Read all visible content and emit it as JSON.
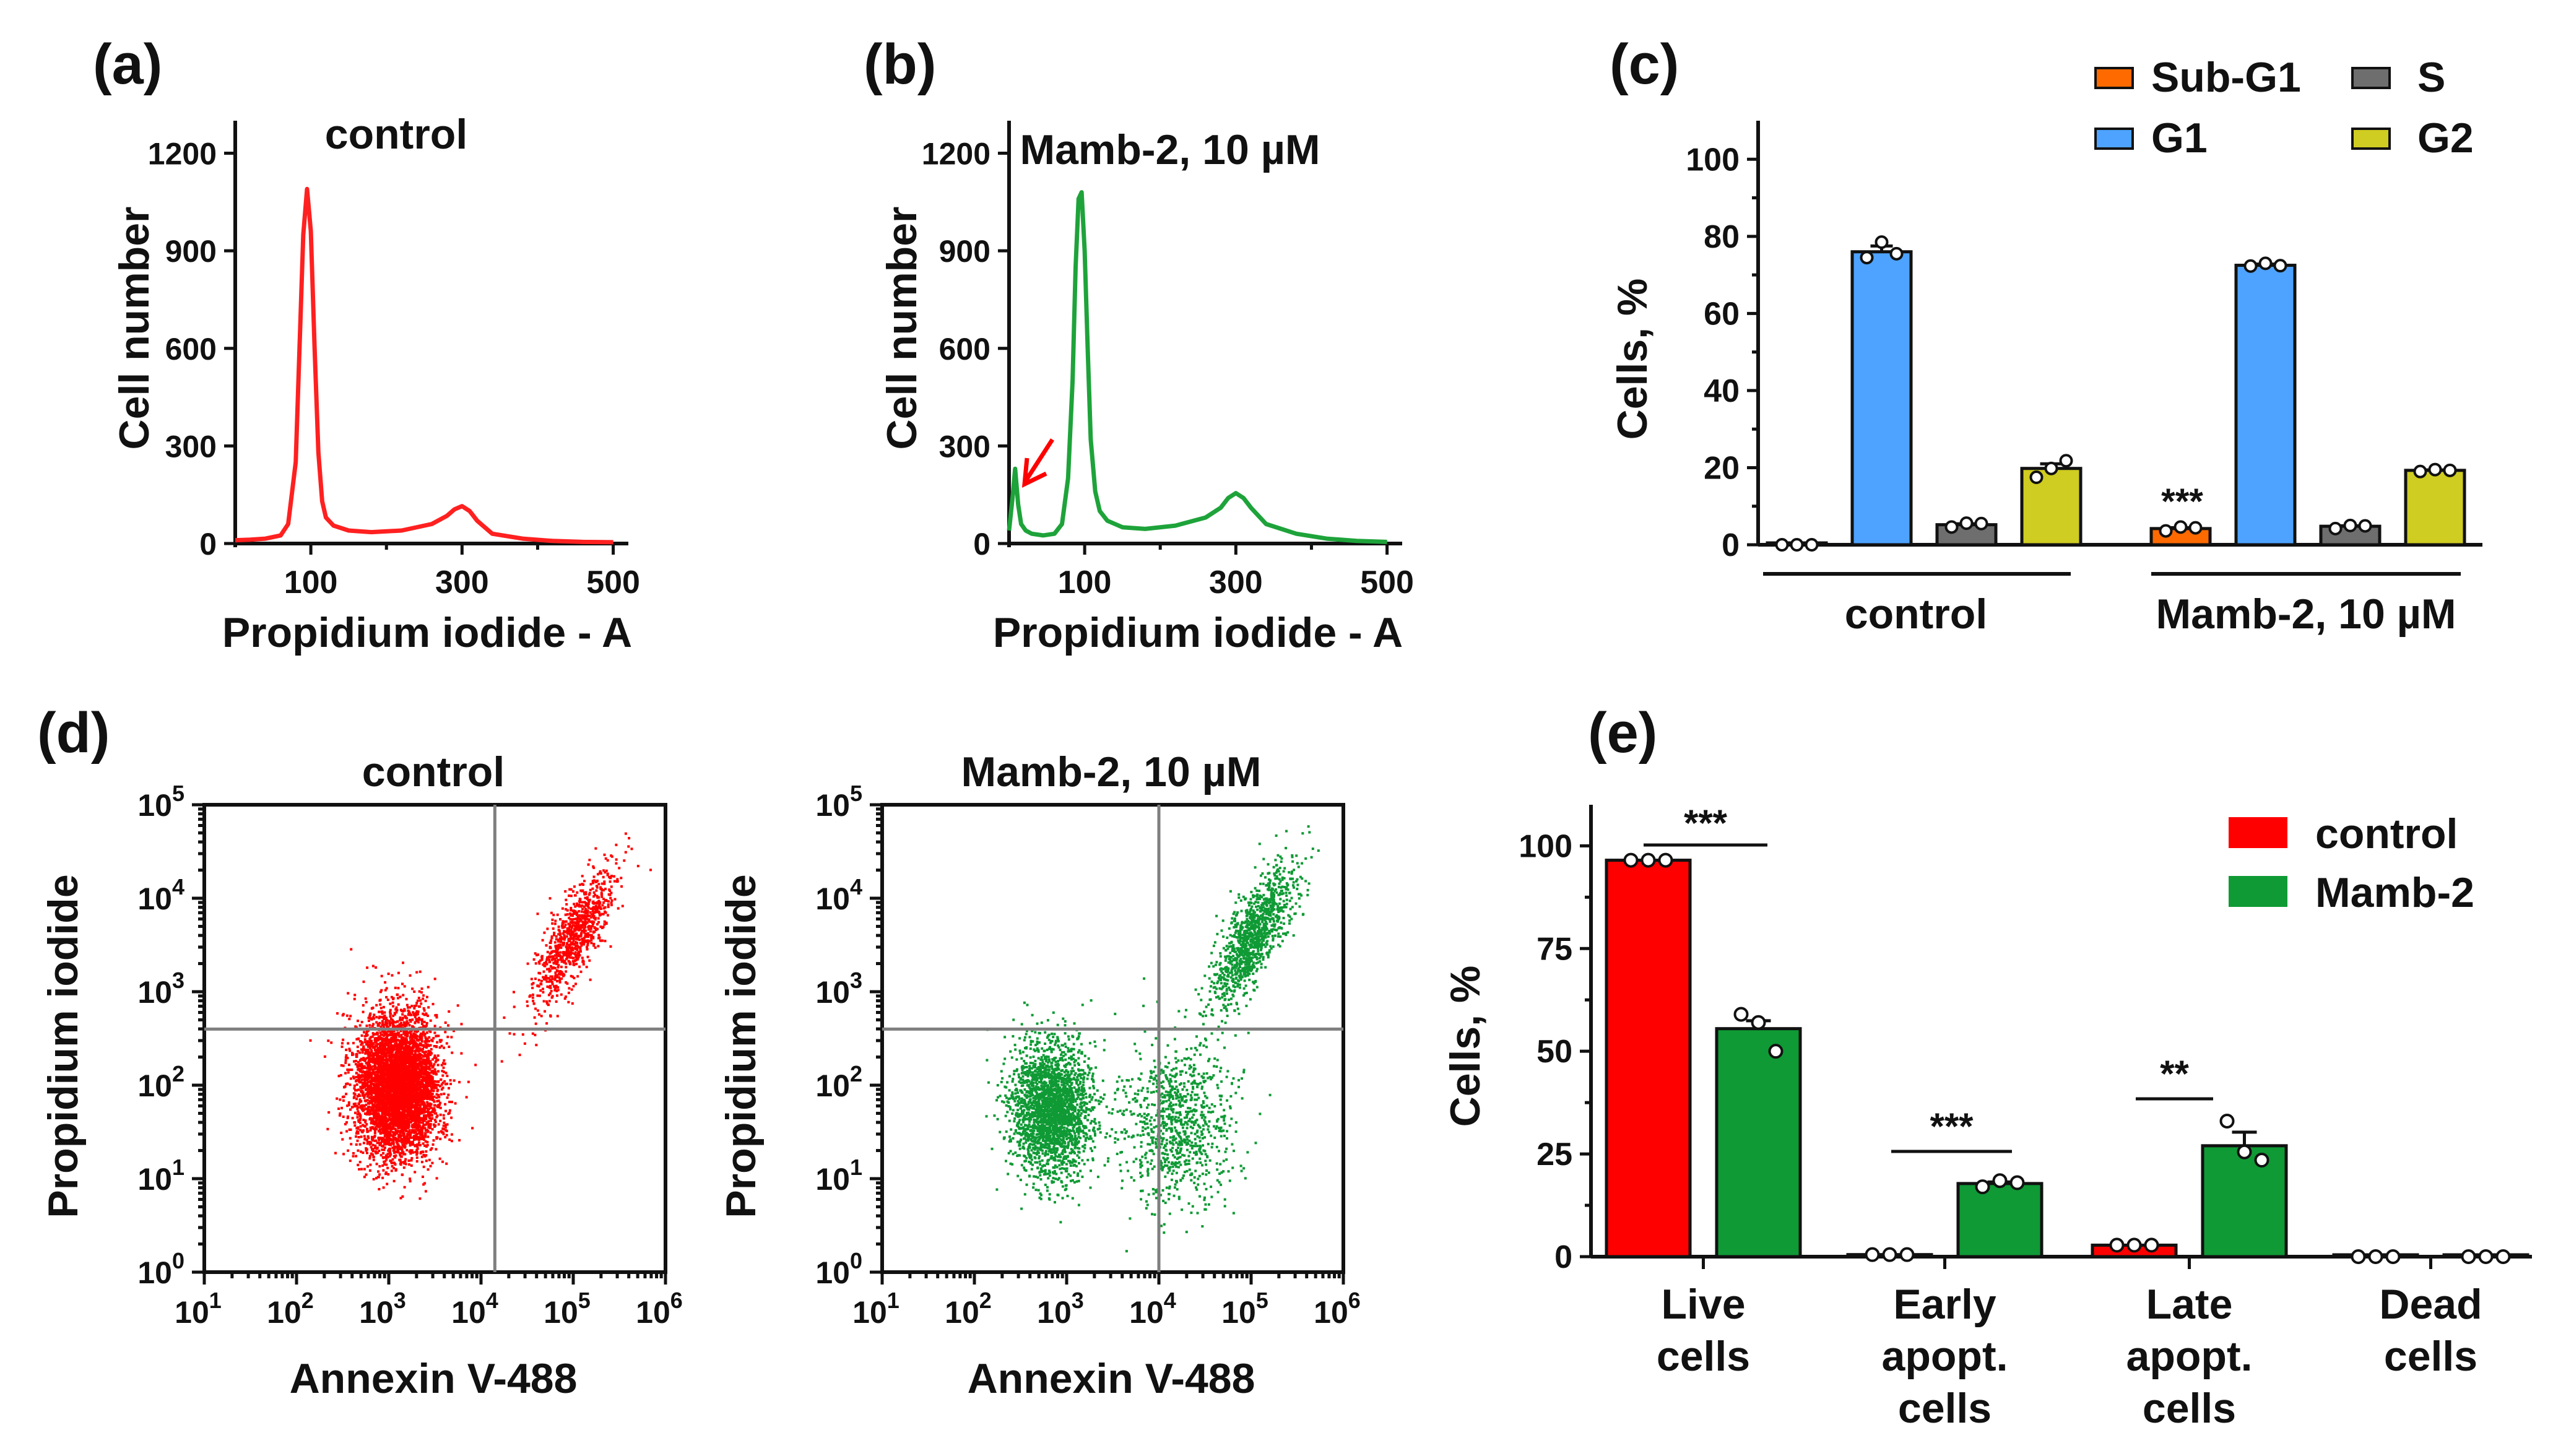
{
  "colors": {
    "red": "#ff0000",
    "red_hist": "#ff2020",
    "green": "#0f9a35",
    "green_hist": "#1ea33a",
    "sub_g1": "#ff6a00",
    "g1": "#4da3ff",
    "s": "#6e6e6e",
    "g2": "#cfcc22",
    "axis": "#111111",
    "quadrant": "#7f7f7f"
  },
  "panel_labels": [
    "(a)",
    "(b)",
    "(c)",
    "(d)",
    "(e)"
  ],
  "chart_data": [
    {
      "id": "a",
      "type": "line",
      "title": "control",
      "xlabel": "Propidium iodide - A",
      "ylabel": "Cell number",
      "xlim": [
        0,
        520
      ],
      "ylim": [
        0,
        1300
      ],
      "xticks": [
        "100",
        "300",
        "500"
      ],
      "yticks": [
        "0",
        "300",
        "600",
        "900",
        "1200"
      ],
      "color": "red_hist",
      "x": [
        0,
        20,
        40,
        60,
        70,
        80,
        85,
        90,
        95,
        100,
        105,
        110,
        115,
        120,
        130,
        150,
        180,
        220,
        260,
        280,
        290,
        300,
        310,
        320,
        340,
        380,
        420,
        460,
        500
      ],
      "y": [
        10,
        12,
        15,
        25,
        60,
        250,
        600,
        950,
        1090,
        960,
        600,
        280,
        130,
        80,
        55,
        40,
        35,
        40,
        60,
        85,
        105,
        115,
        100,
        70,
        30,
        15,
        8,
        5,
        4
      ]
    },
    {
      "id": "b",
      "type": "line",
      "title": "Mamb-2, 10 µM",
      "xlabel": "Propidium iodide - A",
      "ylabel": "Cell number",
      "xlim": [
        0,
        520
      ],
      "ylim": [
        0,
        1300
      ],
      "xticks": [
        "100",
        "300",
        "500"
      ],
      "yticks": [
        "0",
        "300",
        "600",
        "900",
        "1200"
      ],
      "color": "green_hist",
      "annotation": "arrow pointing to sub-G1 peak",
      "x": [
        0,
        5,
        8,
        12,
        16,
        22,
        30,
        45,
        60,
        70,
        78,
        84,
        88,
        92,
        96,
        100,
        104,
        108,
        114,
        120,
        130,
        150,
        180,
        220,
        260,
        280,
        290,
        300,
        310,
        320,
        340,
        380,
        420,
        460,
        500
      ],
      "y": [
        40,
        150,
        230,
        120,
        60,
        40,
        30,
        25,
        30,
        60,
        200,
        500,
        850,
        1060,
        1080,
        900,
        600,
        320,
        160,
        100,
        70,
        50,
        45,
        55,
        80,
        110,
        140,
        155,
        140,
        110,
        60,
        30,
        15,
        8,
        5
      ]
    },
    {
      "id": "c",
      "type": "bar",
      "ylabel": "Cells, %",
      "ylim": [
        0,
        110
      ],
      "yticks": [
        "0",
        "20",
        "40",
        "60",
        "80",
        "100"
      ],
      "groups": [
        "control",
        "Mamb-2, 10 µM"
      ],
      "series": [
        {
          "name": "Sub-G1",
          "color": "sub_g1",
          "values": [
            0,
            4.2
          ],
          "points": [
            [
              0,
              0,
              0
            ],
            [
              3.6,
              4.6,
              4.4
            ]
          ]
        },
        {
          "name": "G1",
          "color": "g1",
          "values": [
            76,
            72.5
          ],
          "points": [
            [
              74.5,
              78.5,
              75.5
            ],
            [
              72.3,
              73.0,
              72.4
            ]
          ]
        },
        {
          "name": "S",
          "color": "s",
          "values": [
            5.2,
            4.8
          ],
          "points": [
            [
              4.6,
              5.6,
              5.5
            ],
            [
              4.2,
              5.0,
              4.9
            ]
          ]
        },
        {
          "name": "G2",
          "color": "g2",
          "values": [
            19.8,
            19.3
          ],
          "points": [
            [
              17.5,
              19.8,
              21.8
            ],
            [
              19.0,
              19.5,
              19.3
            ]
          ]
        }
      ],
      "significance": [
        {
          "series": "Sub-G1",
          "group": "Mamb-2, 10 µM",
          "label": "***"
        }
      ]
    },
    {
      "id": "d1",
      "type": "scatter",
      "title": "control",
      "xlabel": "Annexin V-488",
      "ylabel": "Propidium iodide",
      "xscale": "log",
      "yscale": "log",
      "xlim": [
        1,
        6
      ],
      "ylim": [
        0,
        5
      ],
      "xticks": [
        "10",
        "10",
        "10",
        "10",
        "10",
        "10"
      ],
      "xtick_exp": [
        "1",
        "2",
        "3",
        "4",
        "5",
        "6"
      ],
      "yticks": [
        "10",
        "10",
        "10",
        "10",
        "10",
        "10"
      ],
      "ytick_exp": [
        "0",
        "1",
        "2",
        "3",
        "4",
        "5"
      ],
      "quadrant_gates": {
        "x_log": 4.15,
        "y_log": 2.6
      },
      "color": "red",
      "populations": [
        {
          "label": "live",
          "center": [
            3.08,
            2.0
          ],
          "spread": [
            0.22,
            0.38
          ],
          "n": 5200
        },
        {
          "label": "late apoptotic",
          "center": [
            5.0,
            3.6
          ],
          "spread": [
            0.2,
            0.4
          ],
          "n": 900,
          "diagonal": true
        }
      ]
    },
    {
      "id": "d2",
      "type": "scatter",
      "title": "Mamb-2, 10 µM",
      "xlabel": "Annexin V-488",
      "ylabel": "Propidium iodide",
      "xscale": "log",
      "yscale": "log",
      "xlim": [
        1,
        6
      ],
      "ylim": [
        0,
        5
      ],
      "xticks": [
        "10",
        "10",
        "10",
        "10",
        "10",
        "10"
      ],
      "xtick_exp": [
        "1",
        "2",
        "3",
        "4",
        "5",
        "6"
      ],
      "yticks": [
        "10",
        "10",
        "10",
        "10",
        "10",
        "10"
      ],
      "ytick_exp": [
        "0",
        "1",
        "2",
        "3",
        "4",
        "5"
      ],
      "quadrant_gates": {
        "x_log": 4.0,
        "y_log": 2.6
      },
      "color": "green",
      "populations": [
        {
          "label": "live",
          "center": [
            2.82,
            1.75
          ],
          "spread": [
            0.22,
            0.35
          ],
          "n": 2400
        },
        {
          "label": "early apoptotic",
          "center": [
            4.2,
            1.6
          ],
          "spread": [
            0.3,
            0.45
          ],
          "n": 900
        },
        {
          "label": "late apoptotic",
          "center": [
            5.0,
            3.6
          ],
          "spread": [
            0.2,
            0.4
          ],
          "n": 1100,
          "diagonal": true
        }
      ]
    },
    {
      "id": "e",
      "type": "bar",
      "ylabel": "Cells, %",
      "ylim": [
        0,
        110
      ],
      "yticks": [
        "0",
        "25",
        "50",
        "75",
        "100"
      ],
      "categories": [
        [
          "Live",
          "cells"
        ],
        [
          "Early",
          "apopt.",
          "cells"
        ],
        [
          "Late",
          "apopt.",
          "cells"
        ],
        [
          "Dead",
          "cells"
        ]
      ],
      "series": [
        {
          "name": "control",
          "color": "red",
          "values": [
            96.5,
            0.5,
            2.8,
            0.0
          ],
          "points": [
            [
              96.5,
              96.5,
              96.5
            ],
            [
              0.5,
              0.5,
              0.5
            ],
            [
              2.8,
              2.8,
              2.8
            ],
            [
              0,
              0,
              0
            ]
          ]
        },
        {
          "name": "Mamb-2",
          "color": "green",
          "values": [
            55.5,
            17.8,
            27.0,
            0.0
          ],
          "points": [
            [
              59.0,
              57.0,
              50.0
            ],
            [
              17.0,
              18.5,
              18.0
            ],
            [
              33.0,
              25.5,
              23.5
            ],
            [
              0,
              0,
              0
            ]
          ]
        }
      ],
      "significance": [
        {
          "category": 0,
          "label": "***"
        },
        {
          "category": 1,
          "label": "***"
        },
        {
          "category": 2,
          "label": "**"
        }
      ]
    }
  ]
}
